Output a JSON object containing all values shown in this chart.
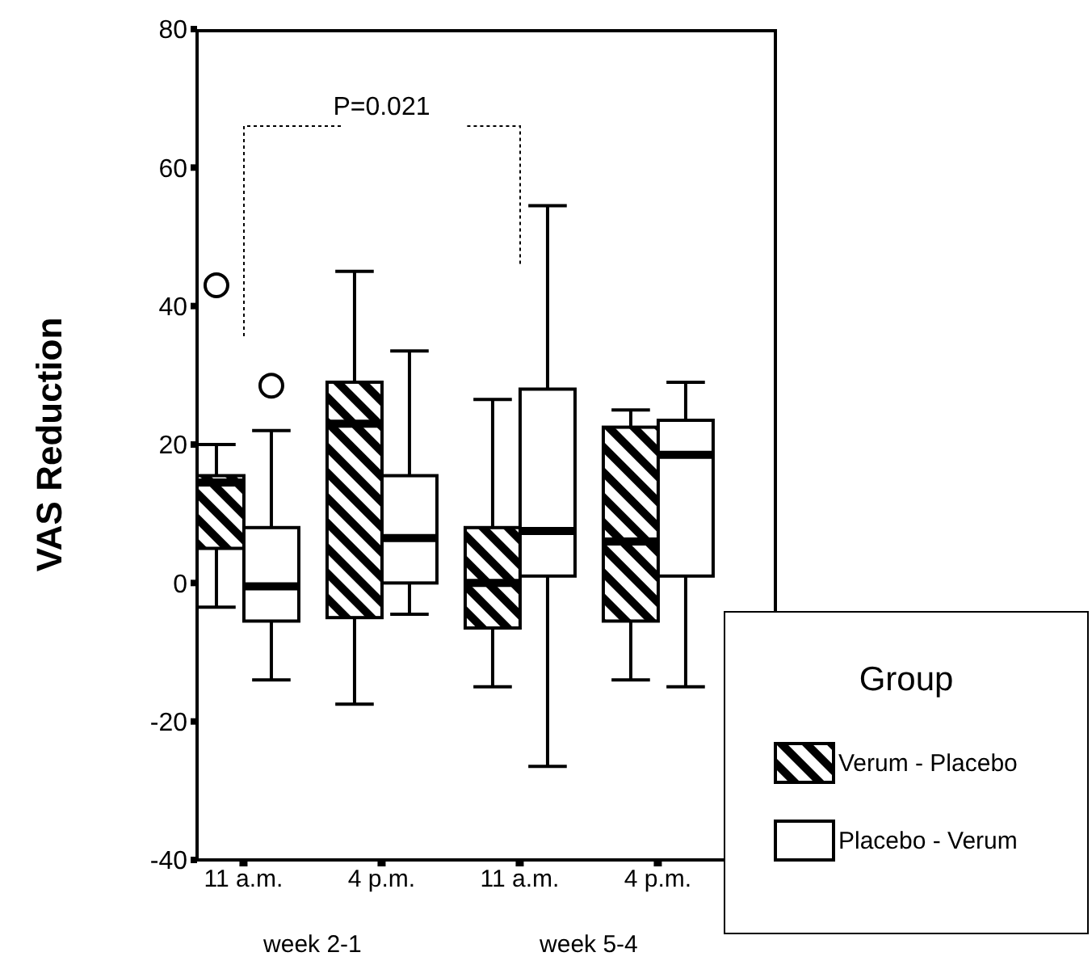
{
  "chart_data": {
    "type": "box",
    "ylabel": "VAS Reduction",
    "legend_title": "Group",
    "legend": "bottom right",
    "grid": false,
    "categories": [
      "11 a.m.",
      "4 p.m.",
      "11 a.m.",
      "4 p.m."
    ],
    "ylim": [
      -40,
      80
    ],
    "yticks": [
      -40,
      -20,
      0,
      20,
      40,
      60,
      80
    ],
    "annotations": [
      "P=0.021",
      "week 2-1",
      "week 5-4"
    ],
    "series": [
      {
        "name": "Verum - Placebo",
        "color": "#000000",
        "boxes": [
          {
            "low": -3.5,
            "q1": 5,
            "median": 14.5,
            "q3": 15.5,
            "high": 20,
            "outliers": [
              43
            ]
          },
          {
            "low": -17.5,
            "q1": -5,
            "median": 23,
            "q3": 29,
            "high": 45
          },
          {
            "low": -15,
            "q1": -6.5,
            "median": 0,
            "q3": 8,
            "high": 26.5
          },
          {
            "low": -14,
            "q1": -5.5,
            "median": 6,
            "q3": 22.5,
            "high": 25
          }
        ]
      },
      {
        "name": "Placebo - Verum",
        "color": "#ffffff",
        "boxes": [
          {
            "low": -14,
            "q1": -5.5,
            "median": -0.5,
            "q3": 8,
            "high": 22,
            "outliers": [
              28.5
            ]
          },
          {
            "low": -4.5,
            "q1": 0,
            "median": 6.5,
            "q3": 15.5,
            "high": 33.5
          },
          {
            "low": -26.5,
            "q1": 1,
            "median": 7.5,
            "q3": 28,
            "high": 54.5
          },
          {
            "low": -15,
            "q1": 1,
            "median": 18.5,
            "q3": 23.5,
            "high": 29
          }
        ]
      }
    ]
  }
}
